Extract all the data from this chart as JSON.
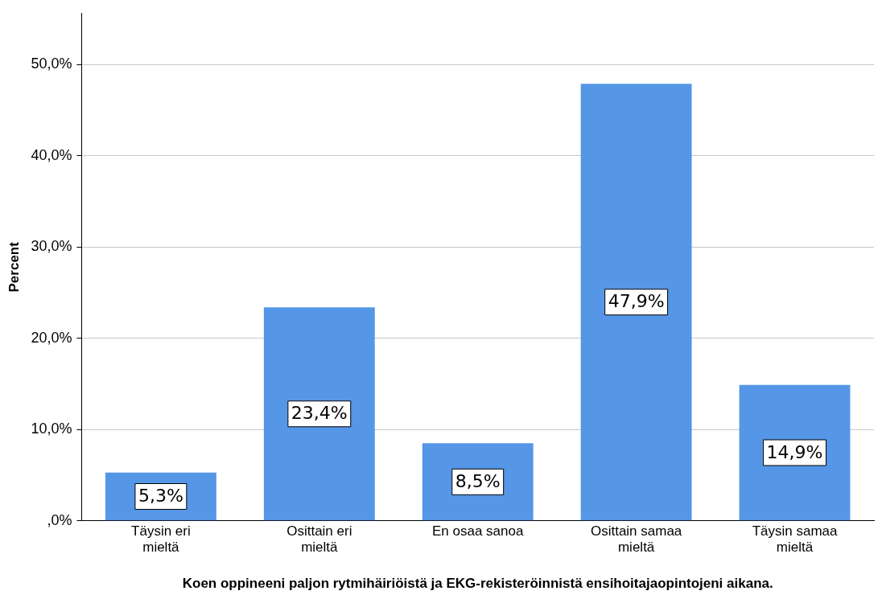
{
  "chart_data": {
    "type": "bar",
    "xlabel": "Koen oppineeni paljon rytmihäiriöistä ja EKG-rekisteröinnistä ensihoitajaopintojeni aikana.",
    "ylabel": "Percent",
    "categories": [
      "Täysin eri mieltä",
      "Osittain eri mieltä",
      "En osaa sanoa",
      "Osittain samaa mieltä",
      "Täysin samaa mieltä"
    ],
    "values": [
      5.3,
      23.4,
      8.5,
      47.9,
      14.9
    ],
    "value_labels": [
      "5,3%",
      "23,4%",
      "8,5%",
      "47,9%",
      "14,9%"
    ],
    "color": "#5596e6",
    "ylim": [
      0,
      55.6
    ],
    "yticks": [
      {
        "value": 0,
        "label": ",0%"
      },
      {
        "value": 10,
        "label": "10,0%"
      },
      {
        "value": 20,
        "label": "20,0%"
      },
      {
        "value": 30,
        "label": "30,0%"
      },
      {
        "value": 40,
        "label": "40,0%"
      },
      {
        "value": 50,
        "label": "50,0%"
      }
    ],
    "grid": "y",
    "legend": false
  }
}
